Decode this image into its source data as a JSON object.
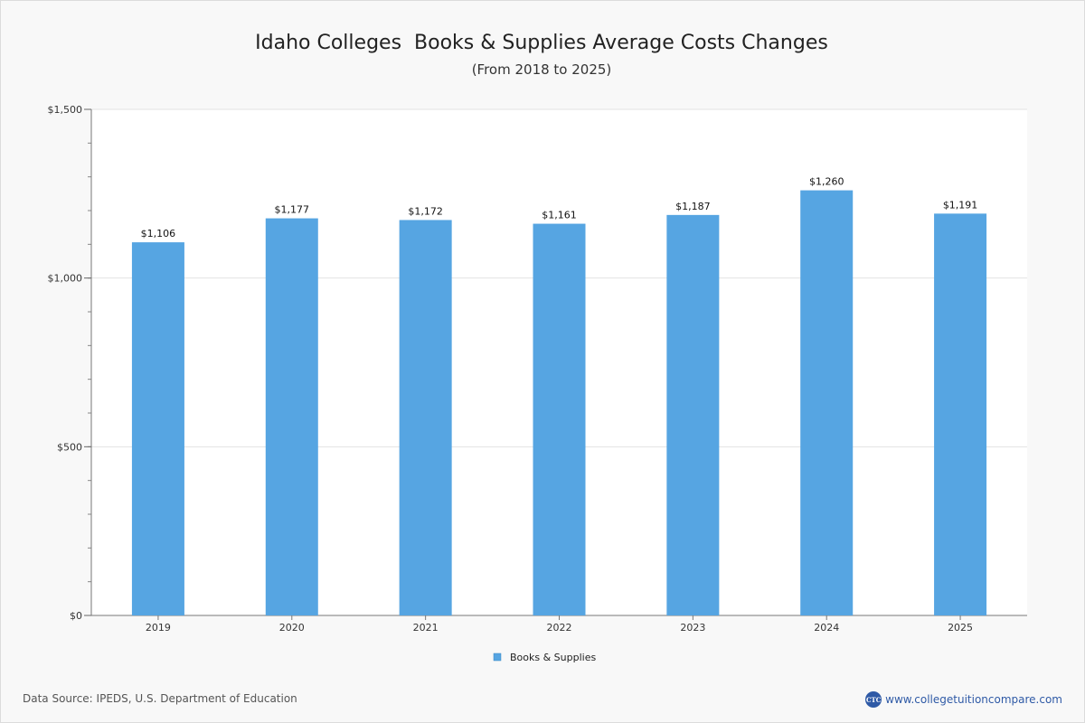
{
  "chart_data": {
    "type": "bar",
    "title": "Idaho Colleges  Books & Supplies Average Costs Changes",
    "subtitle": "(From 2018 to 2025)",
    "categories": [
      "2019",
      "2020",
      "2021",
      "2022",
      "2023",
      "2024",
      "2025"
    ],
    "series": [
      {
        "name": "Books & Supplies",
        "values": [
          1106,
          1177,
          1172,
          1161,
          1187,
          1260,
          1191
        ],
        "labels": [
          "$1,106",
          "$1,177",
          "$1,172",
          "$1,161",
          "$1,187",
          "$1,260",
          "$1,191"
        ],
        "color": "#56a5e2"
      }
    ],
    "ylim": [
      0,
      1500
    ],
    "y_ticks": [
      0,
      500,
      1000,
      1500
    ],
    "y_tick_labels": [
      "$0",
      "$500",
      "$1,000",
      "$1,500"
    ],
    "grid": true,
    "legend": "bottom-center"
  },
  "footer": {
    "source": "Data Source: IPEDS, U.S. Department of Education",
    "logo_text": "CTC",
    "site": "www.collegetuitioncompare.com"
  }
}
